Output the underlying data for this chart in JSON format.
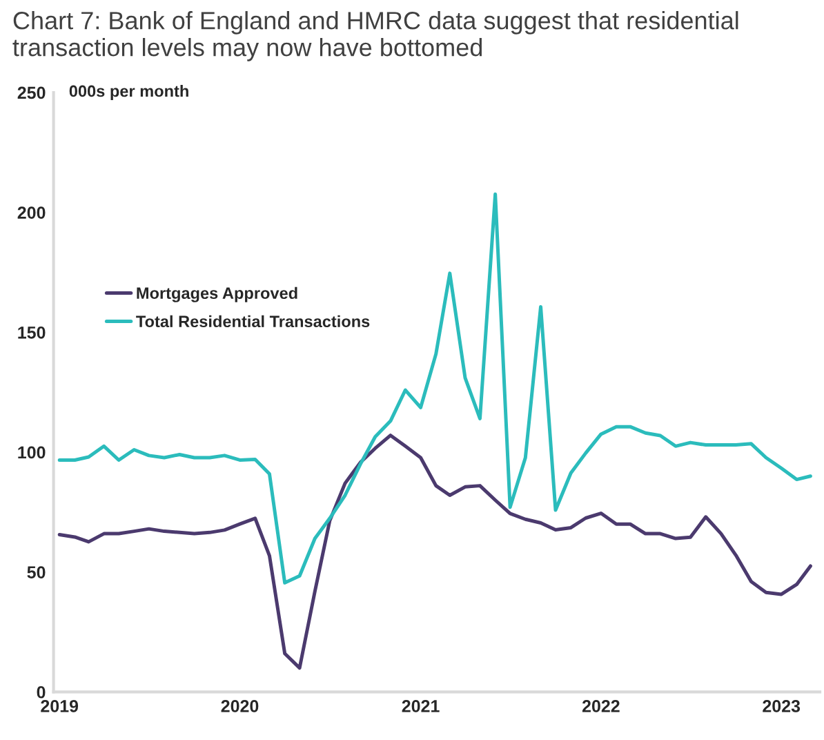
{
  "chart_data": {
    "type": "line",
    "title": "Chart 7: Bank of England and HMRC data suggest that residential transaction levels may now have bottomed",
    "ylabel": "000s per month",
    "x": [
      "2019-01",
      "2019-02",
      "2019-03",
      "2019-04",
      "2019-05",
      "2019-06",
      "2019-07",
      "2019-08",
      "2019-09",
      "2019-10",
      "2019-11",
      "2019-12",
      "2020-01",
      "2020-02",
      "2020-03",
      "2020-04",
      "2020-05",
      "2020-06",
      "2020-07",
      "2020-08",
      "2020-09",
      "2020-10",
      "2020-11",
      "2020-12",
      "2021-01",
      "2021-02",
      "2021-03",
      "2021-04",
      "2021-05",
      "2021-06",
      "2021-07",
      "2021-08",
      "2021-09",
      "2021-10",
      "2021-11",
      "2021-12",
      "2022-01",
      "2022-02",
      "2022-03",
      "2022-04",
      "2022-05",
      "2022-06",
      "2022-07",
      "2022-08",
      "2022-09",
      "2022-10",
      "2022-11",
      "2022-12",
      "2023-01",
      "2023-02",
      "2023-03"
    ],
    "series": [
      {
        "name": "Mortgages Approved",
        "color": "#4b3a6e",
        "values": [
          65.6,
          64.6,
          62.6,
          66,
          66,
          67,
          68,
          67,
          66.5,
          66,
          66.5,
          67.5,
          70,
          72.4,
          56.8,
          16,
          10,
          42,
          71.4,
          87,
          95.7,
          101.6,
          107,
          102.5,
          97.7,
          86,
          82,
          85.5,
          86,
          80,
          74.4,
          72,
          70.5,
          67.6,
          68.5,
          72.5,
          74.5,
          70,
          70,
          66,
          66,
          64,
          64.5,
          73,
          66,
          57,
          46,
          41.5,
          40.7,
          44.8,
          52.5
        ]
      },
      {
        "name": "Total Residential Transactions",
        "color": "#2bbcbc",
        "values": [
          96.7,
          96.7,
          98,
          102.5,
          96.7,
          101,
          98.6,
          97.7,
          99,
          97.7,
          97.7,
          98.6,
          96.7,
          97,
          90.9,
          45.5,
          48.4,
          64,
          72.4,
          82,
          95,
          106.4,
          113,
          125.9,
          118.6,
          141,
          174.6,
          131,
          114,
          207.6,
          77,
          97.7,
          160.6,
          75.8,
          91.3,
          99.6,
          107.5,
          110.6,
          110.6,
          108,
          106.9,
          102.5,
          104,
          103,
          103,
          103,
          103.5,
          97.7,
          93.3,
          88.6,
          90
        ]
      }
    ],
    "xlim": [
      "2018-12-20",
      "2023-03-20"
    ],
    "xticks": [
      {
        "value": "2019-01",
        "label": "2019"
      },
      {
        "value": "2020-01",
        "label": "2020"
      },
      {
        "value": "2021-01",
        "label": "2021"
      },
      {
        "value": "2022-01",
        "label": "2022"
      },
      {
        "value": "2023-01",
        "label": "2023"
      }
    ],
    "ylim": [
      0,
      250
    ],
    "yticks": [
      0,
      50,
      100,
      150,
      200,
      250
    ],
    "legend": "left",
    "grid": false
  }
}
